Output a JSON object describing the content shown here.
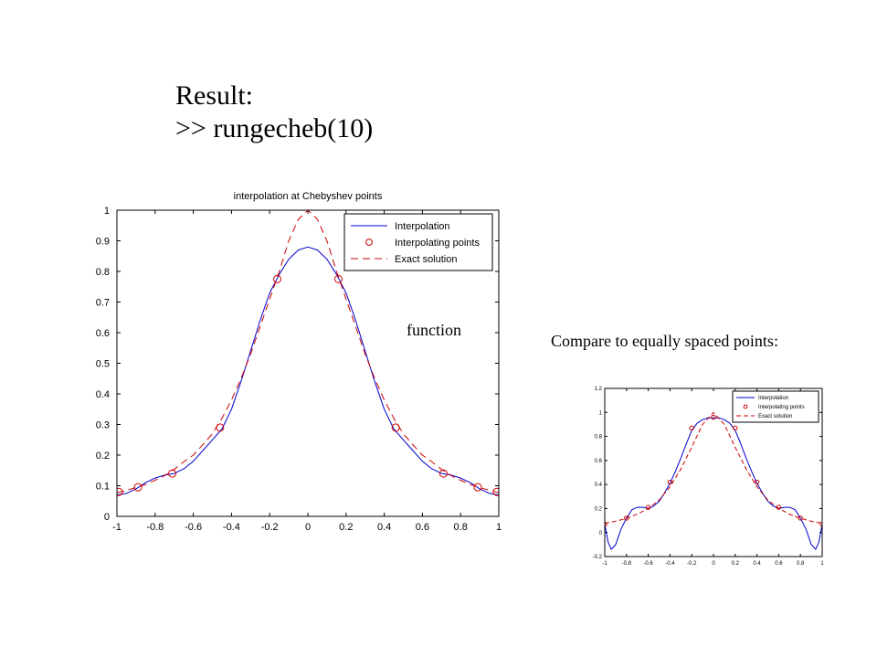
{
  "slide": {
    "heading_line1": "Result:",
    "heading_line2": ">> rungecheb(10)",
    "note_function": "function",
    "note_compare": "Compare to equally spaced points:"
  },
  "colors": {
    "interp": "#0000cc",
    "points": "#cc0000",
    "exact": "#cc0000",
    "axes": "#000000"
  },
  "chart_data": [
    {
      "type": "line",
      "title": "interpolation at Chebyshev points",
      "xlim": [
        -1,
        1
      ],
      "ylim": [
        0,
        1
      ],
      "xticks": [
        -1,
        -0.8,
        -0.6,
        -0.4,
        -0.2,
        0,
        0.2,
        0.4,
        0.6,
        0.8,
        1
      ],
      "xtick_labels": [
        "-1",
        "-0.8",
        "-0.6",
        "-0.4",
        "-0.2",
        "0",
        "0.2",
        "0.4",
        "0.6",
        "0.8",
        "1"
      ],
      "yticks": [
        0,
        0.1,
        0.2,
        0.3,
        0.4,
        0.5,
        0.6,
        0.7,
        0.8,
        0.9,
        1
      ],
      "ytick_labels": [
        "0",
        "0.1",
        "0.2",
        "0.3",
        "0.4",
        "0.5",
        "0.6",
        "0.7",
        "0.8",
        "0.9",
        "1"
      ],
      "legend_position": "top-right",
      "series": [
        {
          "name": "Interpolation",
          "style": "solid",
          "x": [
            -1,
            -0.95,
            -0.9,
            -0.85,
            -0.8,
            -0.75,
            -0.7,
            -0.65,
            -0.6,
            -0.55,
            -0.5,
            -0.45,
            -0.4,
            -0.35,
            -0.3,
            -0.25,
            -0.2,
            -0.15,
            -0.1,
            -0.05,
            0,
            0.05,
            0.1,
            0.15,
            0.2,
            0.25,
            0.3,
            0.35,
            0.4,
            0.45,
            0.5,
            0.55,
            0.6,
            0.65,
            0.7,
            0.75,
            0.8,
            0.85,
            0.9,
            0.95,
            1
          ],
          "y": [
            0.07,
            0.075,
            0.09,
            0.11,
            0.125,
            0.135,
            0.14,
            0.155,
            0.18,
            0.215,
            0.25,
            0.285,
            0.35,
            0.44,
            0.54,
            0.64,
            0.73,
            0.79,
            0.84,
            0.87,
            0.88,
            0.87,
            0.84,
            0.79,
            0.73,
            0.64,
            0.54,
            0.44,
            0.35,
            0.285,
            0.25,
            0.215,
            0.18,
            0.155,
            0.14,
            0.135,
            0.125,
            0.11,
            0.09,
            0.075,
            0.07
          ]
        },
        {
          "name": "Interpolating points",
          "style": "markers",
          "x": [
            -0.99,
            -0.89,
            -0.71,
            -0.46,
            -0.16,
            0.16,
            0.46,
            0.71,
            0.89,
            0.99
          ],
          "y": [
            0.08,
            0.095,
            0.14,
            0.29,
            0.775,
            0.775,
            0.29,
            0.14,
            0.095,
            0.08
          ]
        },
        {
          "name": "Exact solution",
          "style": "dashed",
          "x": [
            -1,
            -0.95,
            -0.9,
            -0.85,
            -0.8,
            -0.75,
            -0.7,
            -0.65,
            -0.6,
            -0.55,
            -0.5,
            -0.45,
            -0.4,
            -0.35,
            -0.3,
            -0.25,
            -0.2,
            -0.15,
            -0.1,
            -0.05,
            0,
            0.05,
            0.1,
            0.15,
            0.2,
            0.25,
            0.3,
            0.35,
            0.4,
            0.45,
            0.5,
            0.55,
            0.6,
            0.65,
            0.7,
            0.75,
            0.8,
            0.85,
            0.9,
            0.95,
            1
          ],
          "y": [
            0.077,
            0.085,
            0.094,
            0.104,
            0.118,
            0.133,
            0.153,
            0.178,
            0.2,
            0.234,
            0.27,
            0.32,
            0.38,
            0.45,
            0.53,
            0.62,
            0.71,
            0.8,
            0.9,
            0.97,
            1.0,
            0.97,
            0.9,
            0.8,
            0.71,
            0.62,
            0.53,
            0.45,
            0.38,
            0.32,
            0.27,
            0.234,
            0.2,
            0.178,
            0.153,
            0.133,
            0.118,
            0.104,
            0.094,
            0.085,
            0.077
          ]
        }
      ]
    },
    {
      "type": "line",
      "title": "",
      "xlim": [
        -1,
        1
      ],
      "ylim": [
        -0.2,
        1.2
      ],
      "xticks": [
        -1,
        -0.8,
        -0.6,
        -0.4,
        -0.2,
        0,
        0.2,
        0.4,
        0.6,
        0.8,
        1
      ],
      "xtick_labels": [
        "-1",
        "-0.8",
        "-0.6",
        "-0.4",
        "-0.2",
        "0",
        "0.2",
        "0.4",
        "0.6",
        "0.8",
        "1"
      ],
      "yticks": [
        -0.2,
        0,
        0.2,
        0.4,
        0.6,
        0.8,
        1,
        1.2
      ],
      "ytick_labels": [
        "-0.2",
        "0",
        "0.2",
        "0.4",
        "0.6",
        "0.8",
        "1",
        "1.2"
      ],
      "legend_position": "top-right",
      "series": [
        {
          "name": "Interpolation",
          "style": "solid",
          "x": [
            -1,
            -0.97,
            -0.94,
            -0.9,
            -0.85,
            -0.8,
            -0.75,
            -0.7,
            -0.65,
            -0.6,
            -0.55,
            -0.5,
            -0.45,
            -0.4,
            -0.35,
            -0.3,
            -0.25,
            -0.2,
            -0.15,
            -0.1,
            -0.05,
            0,
            0.05,
            0.1,
            0.15,
            0.2,
            0.25,
            0.3,
            0.35,
            0.4,
            0.45,
            0.5,
            0.55,
            0.6,
            0.65,
            0.7,
            0.75,
            0.8,
            0.85,
            0.9,
            0.94,
            0.97,
            1
          ],
          "y": [
            0.07,
            -0.08,
            -0.14,
            -0.1,
            0.03,
            0.12,
            0.19,
            0.21,
            0.21,
            0.2,
            0.22,
            0.26,
            0.33,
            0.41,
            0.51,
            0.62,
            0.74,
            0.85,
            0.91,
            0.94,
            0.955,
            0.955,
            0.955,
            0.94,
            0.91,
            0.85,
            0.74,
            0.62,
            0.51,
            0.41,
            0.33,
            0.26,
            0.22,
            0.2,
            0.21,
            0.21,
            0.19,
            0.12,
            0.03,
            -0.1,
            -0.14,
            -0.08,
            0.07
          ]
        },
        {
          "name": "Interpolating points",
          "style": "markers",
          "x": [
            -1,
            -0.8,
            -0.6,
            -0.4,
            -0.2,
            0,
            0.2,
            0.4,
            0.6,
            0.8,
            1
          ],
          "y": [
            0.07,
            0.12,
            0.21,
            0.42,
            0.87,
            0.96,
            0.87,
            0.42,
            0.21,
            0.12,
            0.07
          ]
        },
        {
          "name": "Exact solution",
          "style": "dashed",
          "x": [
            -1,
            -0.9,
            -0.8,
            -0.7,
            -0.6,
            -0.5,
            -0.4,
            -0.3,
            -0.2,
            -0.1,
            0,
            0.1,
            0.2,
            0.3,
            0.4,
            0.5,
            0.6,
            0.7,
            0.8,
            0.9,
            1
          ],
          "y": [
            0.077,
            0.094,
            0.118,
            0.153,
            0.2,
            0.27,
            0.38,
            0.53,
            0.71,
            0.9,
            1.0,
            0.9,
            0.71,
            0.53,
            0.38,
            0.27,
            0.2,
            0.153,
            0.118,
            0.094,
            0.077
          ]
        }
      ]
    }
  ]
}
